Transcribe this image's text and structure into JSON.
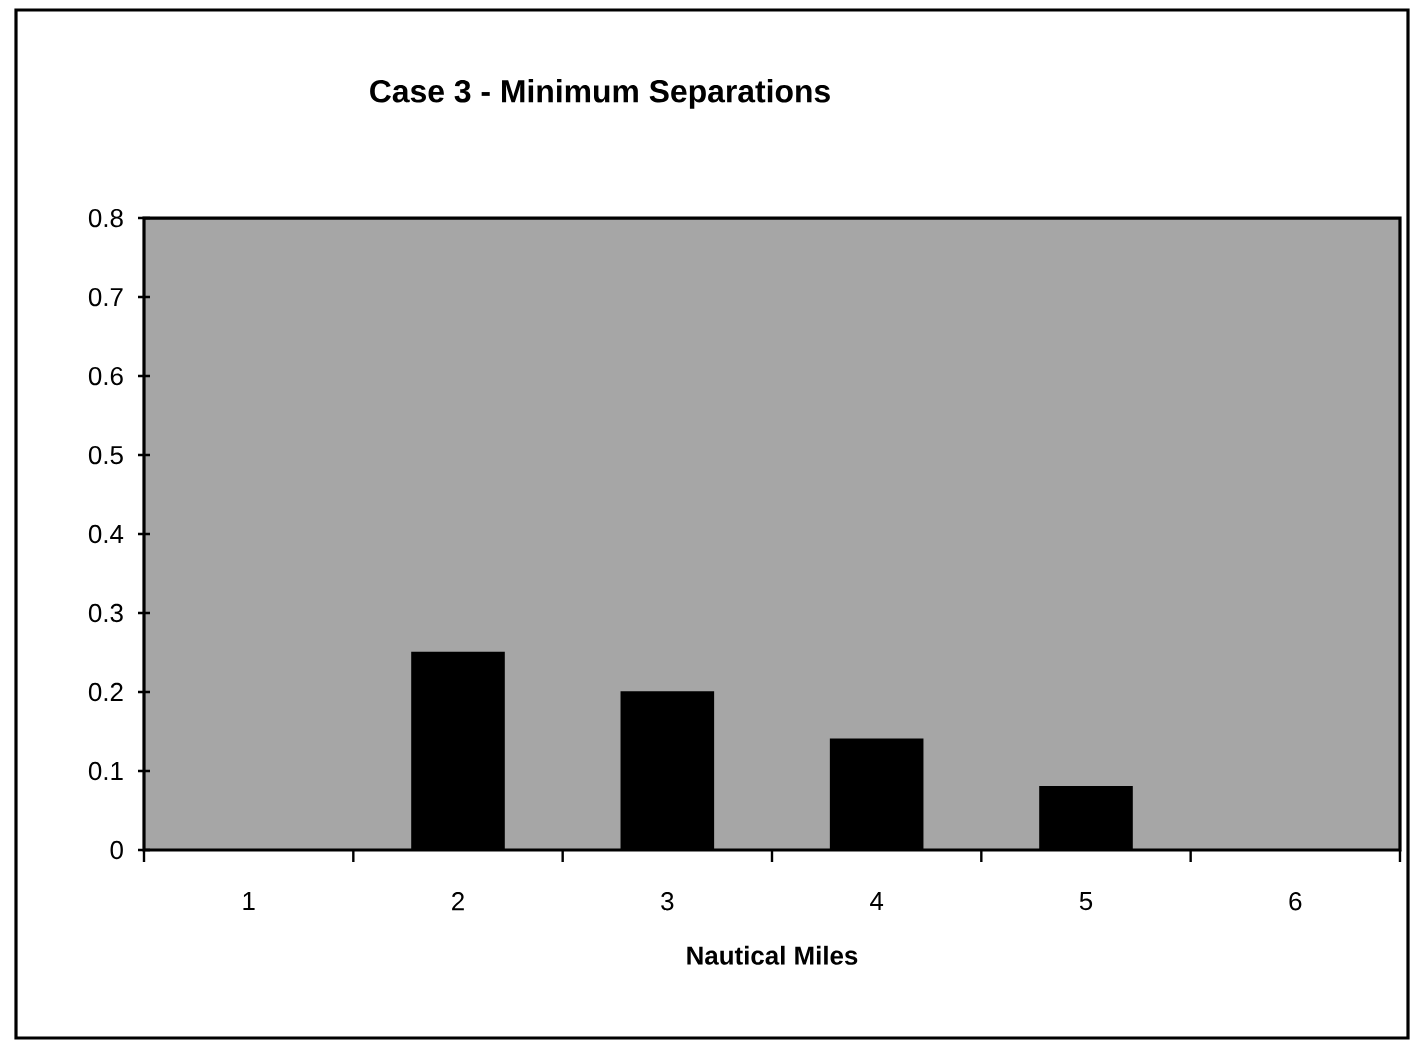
{
  "chart_data": {
    "type": "bar",
    "title": "Case 3 - Minimum Separations",
    "xlabel": "Nautical Miles",
    "categories": [
      "1",
      "2",
      "3",
      "4",
      "5",
      "6"
    ],
    "values": [
      0,
      0.25,
      0.2,
      0.14,
      0.08,
      0
    ],
    "color": "#000000",
    "ylim": [
      0,
      0.8
    ],
    "yticks": [
      0,
      0.1,
      0.2,
      0.3,
      0.4,
      0.5,
      0.6,
      0.7,
      0.8
    ],
    "grid": false
  }
}
